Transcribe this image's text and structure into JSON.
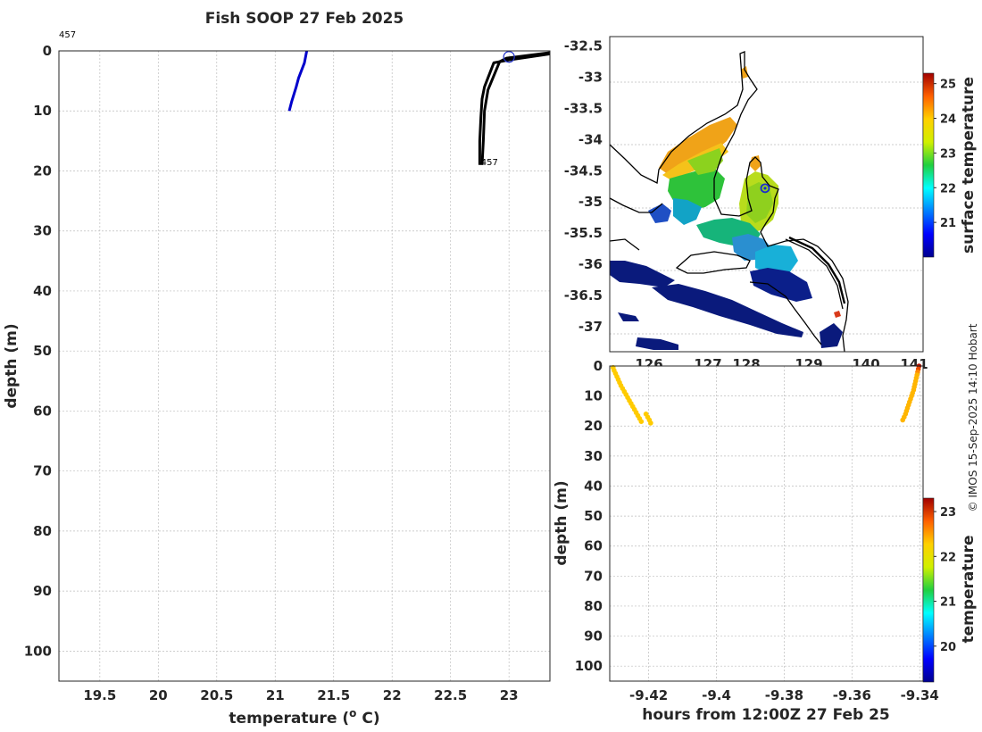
{
  "title": "Fish SOOP 27 Feb 2025",
  "credit": "© IMOS 15-Sep-2025 14:10 Hobart",
  "chart_data": [
    {
      "type": "line",
      "panel": "profile",
      "xlabel": "temperature (o C)",
      "xlabel_main": "temperature (",
      "xlabel_sup": "o",
      "xlabel_end": " C)",
      "ylabel": "depth (m)",
      "xlim": [
        19.15,
        23.35
      ],
      "ylim": [
        105,
        0
      ],
      "y_reversed": true,
      "xticks": [
        "19.5",
        "20",
        "20.5",
        "21",
        "21.5",
        "22",
        "22.5",
        "23"
      ],
      "yticks": [
        "0",
        "10",
        "20",
        "30",
        "40",
        "50",
        "60",
        "70",
        "80",
        "90",
        "100"
      ],
      "grid": true,
      "annotations": [
        {
          "text": "457",
          "x": 19.15,
          "y": -2.2
        },
        {
          "text": "457",
          "x": 22.76,
          "y": 19
        }
      ],
      "series": [
        {
          "color": "#0000cc",
          "x": [
            21.27,
            21.25,
            21.2,
            21.18,
            21.14,
            21.12
          ],
          "y": [
            0,
            2,
            4.5,
            6,
            8.5,
            10
          ]
        },
        {
          "color": "#000000",
          "x": [
            23.35,
            23.0,
            22.87,
            22.79,
            22.77,
            22.76,
            22.75,
            22.75
          ],
          "y": [
            0.5,
            1.5,
            2,
            6,
            8,
            11,
            15,
            19
          ]
        },
        {
          "color": "#000000",
          "x": [
            23.35,
            22.98,
            22.92,
            22.82,
            22.79,
            22.78,
            22.77
          ],
          "y": [
            0.3,
            1.2,
            1.8,
            6.5,
            10,
            15,
            19
          ]
        }
      ],
      "markers": [
        {
          "x": 23.0,
          "y": 1,
          "shape": "open-circle",
          "color": "#2233cc"
        }
      ]
    },
    {
      "type": "heatmap",
      "panel": "map",
      "colorbar_label": "surface temperature",
      "colorbar_ticks": [
        "21",
        "22",
        "23",
        "24",
        "25"
      ],
      "clim": [
        20.0,
        25.3
      ],
      "xlim": [
        124.6,
        141.4
      ],
      "ylim": [
        -37.4,
        -32.35
      ],
      "xticks": [
        "126",
        "127",
        "128",
        "129",
        "140",
        "141"
      ],
      "yticks": [
        "-32.5",
        "-33",
        "-33.5",
        "-34",
        "-34.5",
        "-35",
        "-35.5",
        "-36",
        "-36.5",
        "-37"
      ],
      "vessel_position": {
        "x": 128.2,
        "y": -34.78
      }
    },
    {
      "type": "scatter",
      "panel": "section",
      "xlabel": "hours from 12:00Z 27 Feb 25",
      "ylabel": "depth (m)",
      "xlim": [
        -9.4315,
        -9.339
      ],
      "ylim": [
        105,
        0
      ],
      "y_reversed": true,
      "xticks": [
        "-9.42",
        "-9.4",
        "-9.38",
        "-9.36",
        "-9.34"
      ],
      "yticks": [
        "0",
        "10",
        "20",
        "30",
        "40",
        "50",
        "60",
        "70",
        "80",
        "90",
        "100"
      ],
      "colorbar_label": "temperature",
      "colorbar_ticks": [
        "20",
        "21",
        "22",
        "23"
      ],
      "clim": [
        19.2,
        23.3
      ],
      "grid": true,
      "series": [
        {
          "name": "",
          "x": [
            -9.4305,
            -9.4302,
            -9.4298,
            -9.4294,
            -9.429,
            -9.4286,
            -9.4282,
            -9.4277,
            -9.4272,
            -9.4267,
            -9.4262,
            -9.4257,
            -9.4252,
            -9.4247,
            -9.4242,
            -9.4237,
            -9.4232,
            -9.4227,
            -9.4222,
            -9.4208,
            -9.4203,
            -9.4198,
            -9.4194
          ],
          "y": [
            0.5,
            1.5,
            2.5,
            3.5,
            4.5,
            5.5,
            6.5,
            7.5,
            8.5,
            9.5,
            10.5,
            11.5,
            12.5,
            13.5,
            14.5,
            15.5,
            16.5,
            17.5,
            18.5,
            16,
            17,
            18,
            19
          ],
          "t": [
            22.3,
            22.3,
            22.3,
            22.3,
            22.3,
            22.3,
            22.3,
            22.3,
            22.3,
            22.3,
            22.3,
            22.3,
            22.3,
            22.3,
            22.3,
            22.3,
            22.3,
            22.3,
            22.3,
            22.3,
            22.3,
            22.3,
            22.3
          ]
        },
        {
          "name": "",
          "x": [
            -9.3402,
            -9.3404,
            -9.3406,
            -9.3408,
            -9.341,
            -9.3412,
            -9.3414,
            -9.3416,
            -9.3418,
            -9.3421,
            -9.3424,
            -9.3427,
            -9.343,
            -9.3433,
            -9.3436,
            -9.3439,
            -9.3442,
            -9.3446,
            -9.345
          ],
          "y": [
            0,
            1,
            2,
            3,
            4,
            5,
            6,
            7,
            8,
            9,
            10,
            11,
            12,
            13,
            14,
            15,
            16,
            17,
            18
          ],
          "t": [
            23.2,
            22.9,
            22.6,
            22.4,
            22.4,
            22.4,
            22.4,
            22.4,
            22.4,
            22.4,
            22.4,
            22.4,
            22.4,
            22.4,
            22.4,
            22.4,
            22.4,
            22.4,
            22.4
          ]
        }
      ]
    }
  ]
}
